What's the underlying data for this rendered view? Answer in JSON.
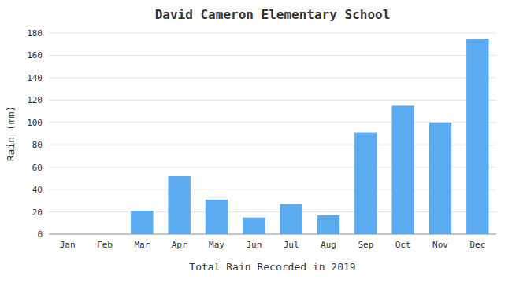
{
  "chart_data": {
    "type": "bar",
    "title": "David Cameron Elementary School",
    "xlabel": "Total Rain Recorded in 2019",
    "ylabel": "Rain (mm)",
    "categories": [
      "Jan",
      "Feb",
      "Mar",
      "Apr",
      "May",
      "Jun",
      "Jul",
      "Aug",
      "Sep",
      "Oct",
      "Nov",
      "Dec"
    ],
    "values": [
      0,
      0,
      21,
      52,
      31,
      15,
      27,
      17,
      91,
      115,
      100,
      175
    ],
    "color": "#5aabf0",
    "ylim": [
      0,
      180
    ],
    "yticks": [
      0,
      20,
      40,
      60,
      80,
      100,
      120,
      140,
      160,
      180
    ],
    "grid": true
  }
}
